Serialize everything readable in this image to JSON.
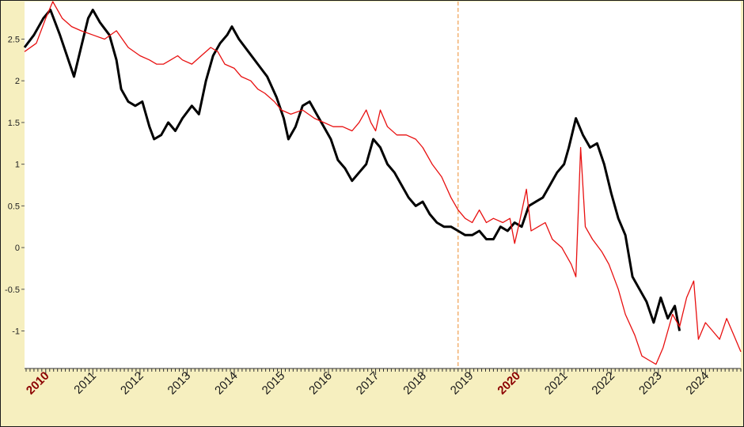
{
  "chart_data": {
    "type": "line",
    "xlabel": "",
    "ylabel": "",
    "x_range": [
      2009.55,
      2024.75
    ],
    "ylim": [
      -1.45,
      2.95
    ],
    "y_ticks": [
      {
        "value": 2.5,
        "label": "2.5"
      },
      {
        "value": 2,
        "label": "2"
      },
      {
        "value": 1.5,
        "label": "1.5"
      },
      {
        "value": 1,
        "label": "1"
      },
      {
        "value": 0.5,
        "label": "0.5"
      },
      {
        "value": 0,
        "label": "0"
      },
      {
        "value": -0.5,
        "label": "-0.5"
      },
      {
        "value": -1,
        "label": "-1"
      }
    ],
    "x_ticks": [
      {
        "value": 2010,
        "label": "2010",
        "highlight": true
      },
      {
        "value": 2011,
        "label": "2011",
        "highlight": false
      },
      {
        "value": 2012,
        "label": "2012",
        "highlight": false
      },
      {
        "value": 2013,
        "label": "2013",
        "highlight": false
      },
      {
        "value": 2014,
        "label": "2014",
        "highlight": false
      },
      {
        "value": 2015,
        "label": "2015",
        "highlight": false
      },
      {
        "value": 2016,
        "label": "2016",
        "highlight": false
      },
      {
        "value": 2017,
        "label": "2017",
        "highlight": false
      },
      {
        "value": 2018,
        "label": "2018",
        "highlight": false
      },
      {
        "value": 2019,
        "label": "2019",
        "highlight": false
      },
      {
        "value": 2020,
        "label": "2020",
        "highlight": true
      },
      {
        "value": 2021,
        "label": "2021",
        "highlight": false
      },
      {
        "value": 2022,
        "label": "2022",
        "highlight": false
      },
      {
        "value": 2023,
        "label": "2023",
        "highlight": false
      },
      {
        "value": 2024,
        "label": "2024",
        "highlight": false
      }
    ],
    "vertical_marker": {
      "x": 2018.75,
      "color": "#f0a050",
      "style": "dashed"
    },
    "grid": false,
    "series": [
      {
        "color": "#000000",
        "line_width": 3,
        "x": [
          2009.55,
          2009.75,
          2009.95,
          2010.1,
          2010.3,
          2010.45,
          2010.6,
          2010.75,
          2010.9,
          2011.0,
          2011.15,
          2011.35,
          2011.5,
          2011.6,
          2011.75,
          2011.9,
          2012.05,
          2012.2,
          2012.3,
          2012.45,
          2012.6,
          2012.75,
          2012.9,
          2013.1,
          2013.25,
          2013.4,
          2013.55,
          2013.7,
          2013.85,
          2013.95,
          2014.1,
          2014.3,
          2014.5,
          2014.7,
          2014.9,
          2015.05,
          2015.15,
          2015.3,
          2015.45,
          2015.6,
          2015.75,
          2015.9,
          2016.05,
          2016.2,
          2016.35,
          2016.5,
          2016.65,
          2016.8,
          2016.95,
          2017.1,
          2017.25,
          2017.4,
          2017.55,
          2017.7,
          2017.85,
          2018.0,
          2018.15,
          2018.3,
          2018.45,
          2018.6,
          2018.75,
          2018.9,
          2019.05,
          2019.2,
          2019.35,
          2019.5,
          2019.65,
          2019.8,
          2019.95,
          2020.1,
          2020.25,
          2020.4,
          2020.55,
          2020.7,
          2020.85,
          2021.0,
          2021.1,
          2021.25,
          2021.4,
          2021.55,
          2021.7,
          2021.85,
          2022.0,
          2022.15,
          2022.3,
          2022.45,
          2022.6,
          2022.75,
          2022.9,
          2023.05,
          2023.2,
          2023.35,
          2023.45
        ],
        "y": [
          2.4,
          2.55,
          2.75,
          2.85,
          2.55,
          2.3,
          2.05,
          2.4,
          2.75,
          2.85,
          2.7,
          2.55,
          2.25,
          1.9,
          1.75,
          1.7,
          1.75,
          1.45,
          1.3,
          1.35,
          1.5,
          1.4,
          1.55,
          1.7,
          1.6,
          2.0,
          2.3,
          2.45,
          2.55,
          2.65,
          2.5,
          2.35,
          2.2,
          2.05,
          1.8,
          1.55,
          1.3,
          1.45,
          1.7,
          1.75,
          1.6,
          1.45,
          1.3,
          1.05,
          0.95,
          0.8,
          0.9,
          1.0,
          1.3,
          1.2,
          1.0,
          0.9,
          0.75,
          0.6,
          0.5,
          0.55,
          0.4,
          0.3,
          0.25,
          0.25,
          0.2,
          0.15,
          0.15,
          0.2,
          0.1,
          0.1,
          0.25,
          0.2,
          0.3,
          0.25,
          0.5,
          0.55,
          0.6,
          0.75,
          0.9,
          1.0,
          1.2,
          1.55,
          1.35,
          1.2,
          1.25,
          1.0,
          0.65,
          0.35,
          0.15,
          -0.35,
          -0.5,
          -0.65,
          -0.9,
          -0.6,
          -0.85,
          -0.7,
          -1.0
        ]
      },
      {
        "color": "#e81010",
        "line_width": 1.3,
        "x": [
          2009.55,
          2009.8,
          2010.0,
          2010.15,
          2010.35,
          2010.55,
          2010.75,
          2011.0,
          2011.25,
          2011.5,
          2011.75,
          2012.0,
          2012.2,
          2012.35,
          2012.5,
          2012.65,
          2012.8,
          2012.9,
          2013.1,
          2013.3,
          2013.5,
          2013.65,
          2013.8,
          2014.0,
          2014.15,
          2014.35,
          2014.5,
          2014.65,
          2014.85,
          2015.0,
          2015.2,
          2015.45,
          2015.7,
          2015.9,
          2016.1,
          2016.3,
          2016.5,
          2016.65,
          2016.8,
          2016.9,
          2017.0,
          2017.1,
          2017.25,
          2017.45,
          2017.65,
          2017.85,
          2018.0,
          2018.2,
          2018.4,
          2018.6,
          2018.75,
          2018.9,
          2019.05,
          2019.2,
          2019.35,
          2019.5,
          2019.7,
          2019.85,
          2019.95,
          2020.05,
          2020.2,
          2020.3,
          2020.45,
          2020.6,
          2020.75,
          2020.95,
          2021.05,
          2021.15,
          2021.25,
          2021.35,
          2021.45,
          2021.6,
          2021.8,
          2021.95,
          2022.15,
          2022.3,
          2022.5,
          2022.65,
          2022.8,
          2022.95,
          2023.1,
          2023.3,
          2023.45,
          2023.6,
          2023.75,
          2023.85,
          2024.0,
          2024.15,
          2024.3,
          2024.45,
          2024.6,
          2024.75
        ],
        "y": [
          2.35,
          2.45,
          2.75,
          2.95,
          2.75,
          2.65,
          2.6,
          2.55,
          2.5,
          2.6,
          2.4,
          2.3,
          2.25,
          2.2,
          2.2,
          2.25,
          2.3,
          2.25,
          2.2,
          2.3,
          2.4,
          2.35,
          2.2,
          2.15,
          2.05,
          2.0,
          1.9,
          1.85,
          1.75,
          1.65,
          1.6,
          1.65,
          1.55,
          1.5,
          1.45,
          1.45,
          1.4,
          1.5,
          1.65,
          1.5,
          1.4,
          1.65,
          1.45,
          1.35,
          1.35,
          1.3,
          1.2,
          1.0,
          0.85,
          0.6,
          0.45,
          0.35,
          0.3,
          0.45,
          0.3,
          0.35,
          0.3,
          0.35,
          0.05,
          0.3,
          0.7,
          0.2,
          0.25,
          0.3,
          0.1,
          0.0,
          -0.1,
          -0.2,
          -0.35,
          1.2,
          0.25,
          0.1,
          -0.05,
          -0.2,
          -0.5,
          -0.8,
          -1.05,
          -1.3,
          -1.35,
          -1.4,
          -1.2,
          -0.8,
          -0.95,
          -0.6,
          -0.4,
          -1.1,
          -0.9,
          -1.0,
          -1.1,
          -0.85,
          -1.05,
          -1.25
        ]
      }
    ]
  }
}
